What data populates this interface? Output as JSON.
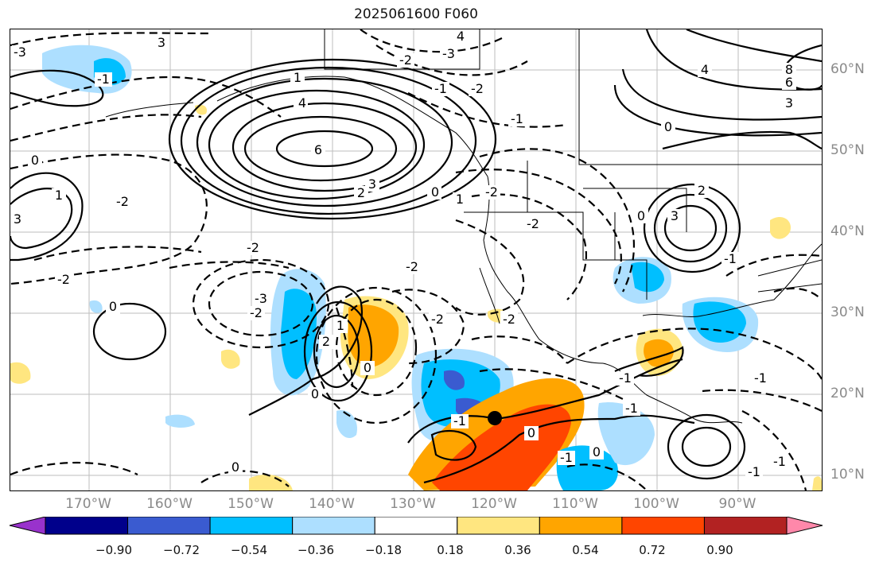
{
  "title": "2025061600 F060",
  "map": {
    "projection": "lat-lon",
    "lon_labels": [
      "170°W",
      "160°W",
      "150°W",
      "140°W",
      "130°W",
      "120°W",
      "110°W",
      "100°W",
      "90°W"
    ],
    "lat_labels": [
      "60°N",
      "50°N",
      "40°N",
      "30°N",
      "20°N",
      "10°N"
    ],
    "gridlines": true,
    "contour_labels": [
      "4",
      "3",
      "-2",
      "-3",
      "-1",
      "1",
      "4",
      "6",
      "-3",
      "-2",
      "3",
      "2",
      "-2",
      "0",
      "-1",
      "0",
      "1",
      "-2",
      "-2",
      "-2",
      "-3",
      "-2",
      "-2",
      "2",
      "0",
      "-2",
      "1",
      "-1",
      "0",
      "-1",
      "0",
      "-1",
      "8",
      "6",
      "3",
      "4",
      "0",
      "-1",
      "2",
      "3",
      "-1",
      "0",
      "-2",
      "0",
      "1",
      "2",
      "3",
      "-1",
      "0",
      "-1",
      "-1",
      "0",
      "-2",
      "-1"
    ],
    "marker": "center-point"
  },
  "colorbar": {
    "ticks": [
      "−0.90",
      "−0.72",
      "−0.54",
      "−0.36",
      "−0.18",
      "0.18",
      "0.36",
      "0.54",
      "0.72",
      "0.90"
    ],
    "colors": [
      "#9932CC",
      "#00008B",
      "#3A5BD0",
      "#00BFFF",
      "#ADDFFF",
      "#FFFFFF",
      "#FFE680",
      "#FFA500",
      "#FF4500",
      "#B22222",
      "#FF88AA"
    ],
    "extend": "both"
  }
}
